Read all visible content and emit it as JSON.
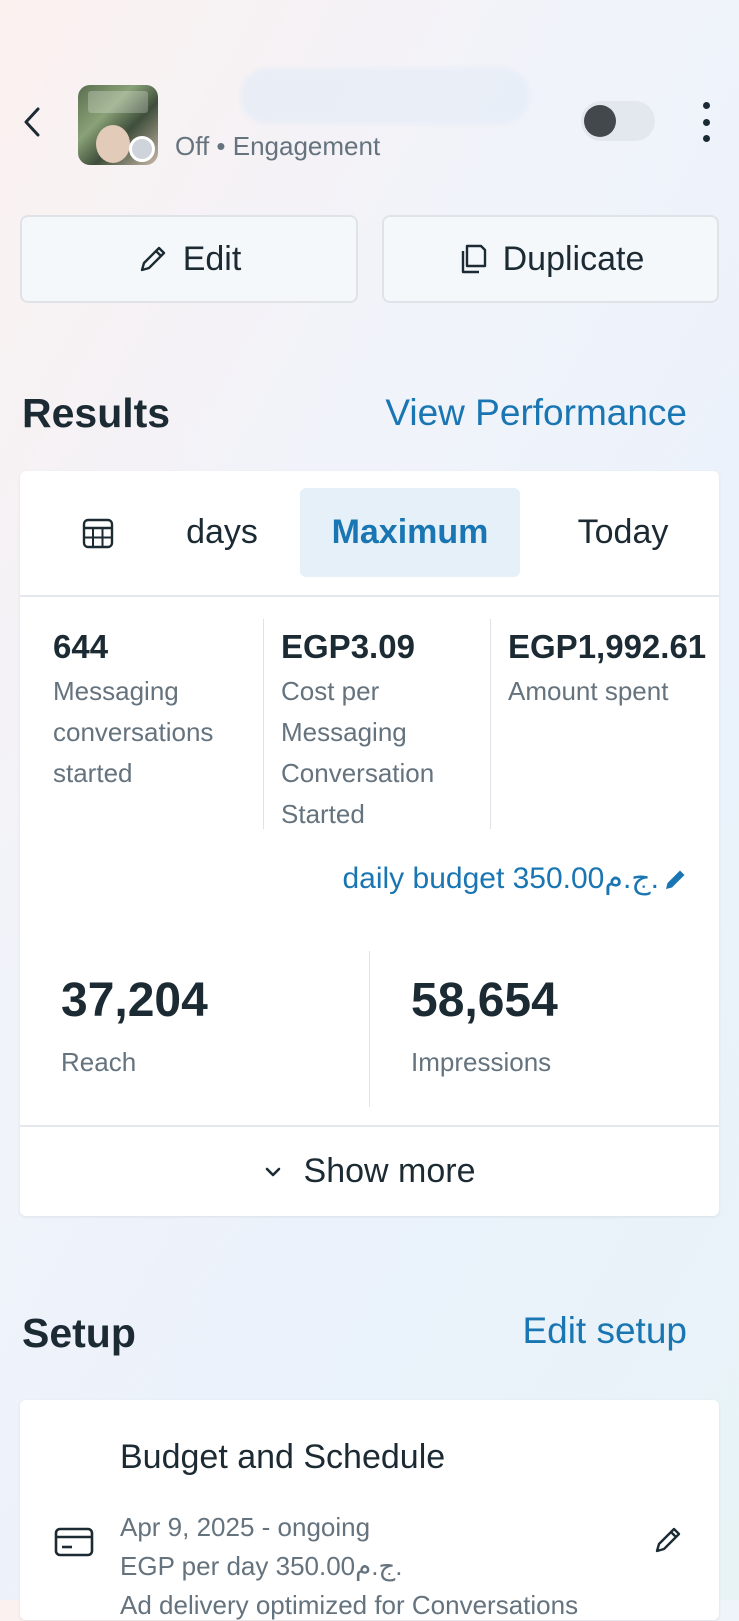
{
  "header": {
    "status": "Off • Engagement",
    "toggle_state": "off",
    "icons": [
      "back-chevron-icon",
      "more-vertical-icon"
    ]
  },
  "actions": {
    "edit_label": "Edit",
    "duplicate_label": "Duplicate"
  },
  "results": {
    "title": "Results",
    "view_performance": "View Performance",
    "tabs": {
      "days": "days",
      "maximum": "Maximum",
      "today": "Today",
      "selected": "Maximum"
    },
    "metrics": [
      {
        "value": "644",
        "label": "Messaging conversations started"
      },
      {
        "value": "EGP3.09",
        "label": "Cost per Messaging Conversation Started"
      },
      {
        "value": "EGP1,992.61",
        "label": "Amount spent"
      }
    ],
    "daily_budget": "daily budget 350.00ج.م.",
    "reach": {
      "value": "37,204",
      "label": "Reach"
    },
    "impressions": {
      "value": "58,654",
      "label": "Impressions"
    },
    "show_more": "Show more"
  },
  "setup": {
    "title": "Setup",
    "edit_setup": "Edit setup",
    "budget_schedule": {
      "title": "Budget and Schedule",
      "dates": "Apr 9, 2025 - ongoing",
      "budget": "EGP per day 350.00ج.م.",
      "optimization": "Ad delivery optimized for Conversations"
    }
  },
  "colors": {
    "accent": "#1976b2",
    "text": "#1c2b33",
    "muted": "#65737e",
    "tab_selected_bg": "#e6f0f8"
  }
}
